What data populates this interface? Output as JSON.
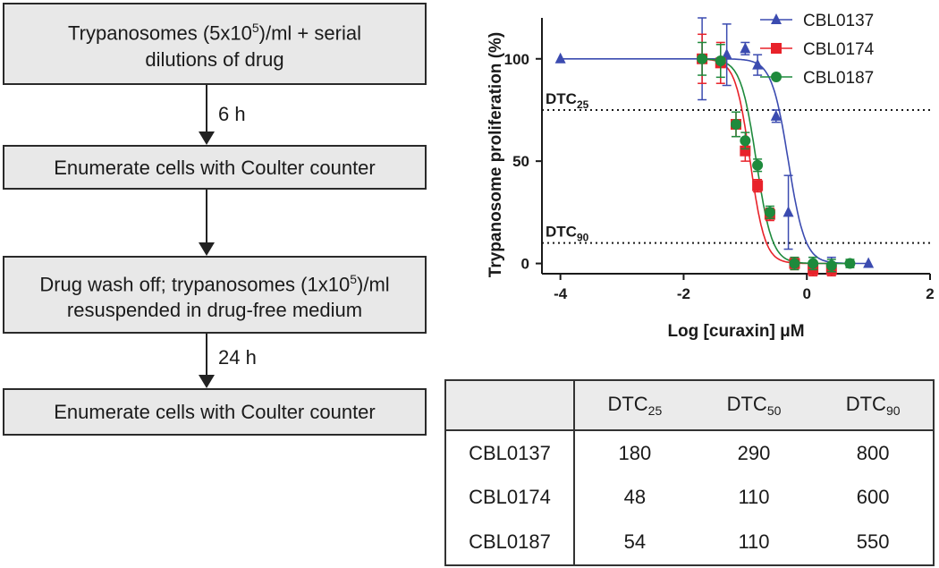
{
  "flowchart": {
    "box1_line1": "Trypanosomes (5x10",
    "box1_sup": "5",
    "box1_line1_end": ")/ml + serial",
    "box1_line2": "dilutions of drug",
    "step1_label": "6 h",
    "box2": "Enumerate cells with Coulter counter",
    "box3_line1": "Drug wash off; trypanosomes (1x10",
    "box3_sup": "5",
    "box3_line1_end": ")/ml",
    "box3_line2": "resuspended in drug-free medium",
    "step2_label": "24 h",
    "box4": "Enumerate cells with Coulter counter"
  },
  "chart_data": {
    "type": "scatter",
    "xlabel": "Log [curaxin] μM",
    "ylabel": "Trypanosome proliferation (%)",
    "xlim": [
      -4.3,
      2
    ],
    "ylim": [
      -5,
      120
    ],
    "xticks": [
      -4,
      -2,
      0,
      2
    ],
    "yticks": [
      0,
      50,
      100
    ],
    "legend_position": "top-right",
    "reference_lines": [
      {
        "label": "DTC",
        "sub": "25",
        "y": 75
      },
      {
        "label": "DTC",
        "sub": "90",
        "y": 10
      }
    ],
    "series": [
      {
        "name": "CBL0137",
        "color": "#3b4bb0",
        "marker": "triangle",
        "logEC50": -0.3,
        "hill": 3.2,
        "x": [
          -4,
          -1.7,
          -1.3,
          -1.0,
          -0.8,
          -0.5,
          -0.3,
          0.1,
          0.4,
          1.0
        ],
        "y": [
          100,
          100,
          102,
          105,
          97,
          72,
          25,
          0,
          0,
          0
        ],
        "err": [
          0,
          20,
          15,
          3,
          5,
          3,
          18,
          3,
          3,
          0
        ]
      },
      {
        "name": "CBL0174",
        "color": "#e8222a",
        "marker": "square",
        "logEC50": -0.92,
        "hill": 3.6,
        "x": [
          -1.7,
          -1.4,
          -1.15,
          -1.0,
          -0.8,
          -0.6,
          -0.2,
          0.1,
          0.4
        ],
        "y": [
          100,
          98,
          68,
          55,
          38,
          24,
          0,
          -3,
          -3
        ],
        "err": [
          12,
          10,
          6,
          5,
          3,
          3,
          3,
          3,
          3
        ]
      },
      {
        "name": "CBL0187",
        "color": "#1e8a3c",
        "marker": "circle",
        "logEC50": -0.82,
        "hill": 3.4,
        "x": [
          -1.7,
          -1.4,
          -1.15,
          -1.0,
          -0.8,
          -0.6,
          -0.2,
          0.1,
          0.4,
          0.7
        ],
        "y": [
          100,
          99,
          68,
          60,
          48,
          25,
          0,
          0,
          -1,
          0
        ],
        "err": [
          8,
          8,
          6,
          4,
          3,
          3,
          3,
          3,
          3,
          2
        ]
      }
    ]
  },
  "table": {
    "headers": [
      {
        "base": "DTC",
        "sub": "25"
      },
      {
        "base": "DTC",
        "sub": "50"
      },
      {
        "base": "DTC",
        "sub": "90"
      }
    ],
    "rows": [
      {
        "name": "CBL0137",
        "values": [
          "180",
          "290",
          "800"
        ]
      },
      {
        "name": "CBL0174",
        "values": [
          "48",
          "110",
          "600"
        ]
      },
      {
        "name": "CBL0187",
        "values": [
          "54",
          "110",
          "550"
        ]
      }
    ]
  }
}
